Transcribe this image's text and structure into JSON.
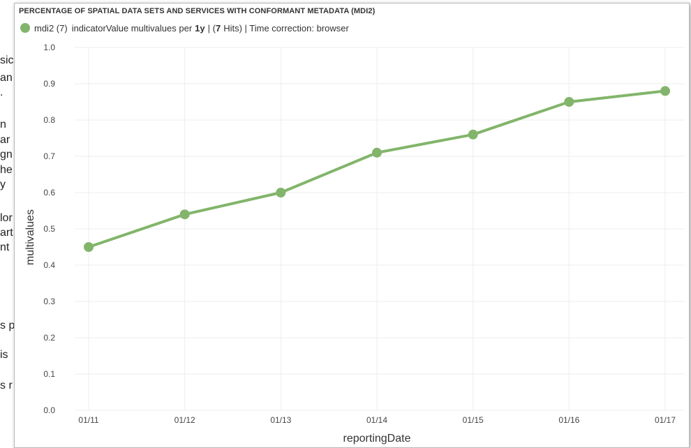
{
  "background_fragments": [
    "sic",
    "an",
    ".",
    "n",
    "ar",
    "gn",
    "he",
    "y",
    "lor",
    "art",
    "nt",
    "s p",
    "is",
    "s r"
  ],
  "panel": {
    "title": "PERCENTAGE OF SPATIAL DATA SETS AND SERVICES WITH CONFORMANT METADATA (MDI2)",
    "legend": {
      "series_label": "mdi2 (7)",
      "text_prefix": "indicatorValue multivalues per",
      "period": "1y",
      "sep1": "| (",
      "hits": "7",
      "hits_suffix": "Hits) | Time correction: browser"
    }
  },
  "colors": {
    "series": "#82b56b",
    "grid": "#eeeeee"
  },
  "chart_data": {
    "type": "line",
    "title": "PERCENTAGE OF SPATIAL DATA SETS AND SERVICES WITH CONFORMANT METADATA (MDI2)",
    "xlabel": "reportingDate",
    "ylabel": "multivalues",
    "categories": [
      "01/11",
      "01/12",
      "01/13",
      "01/14",
      "01/15",
      "01/16",
      "01/17"
    ],
    "series": [
      {
        "name": "mdi2 (7)",
        "values": [
          0.45,
          0.54,
          0.6,
          0.71,
          0.76,
          0.85,
          0.88
        ]
      }
    ],
    "ylim": [
      0,
      1.0
    ],
    "yticks": [
      "0.0",
      "0.1",
      "0.2",
      "0.3",
      "0.4",
      "0.5",
      "0.6",
      "0.7",
      "0.8",
      "0.9",
      "1.0"
    ],
    "grid": true,
    "legend_position": "top-left"
  }
}
